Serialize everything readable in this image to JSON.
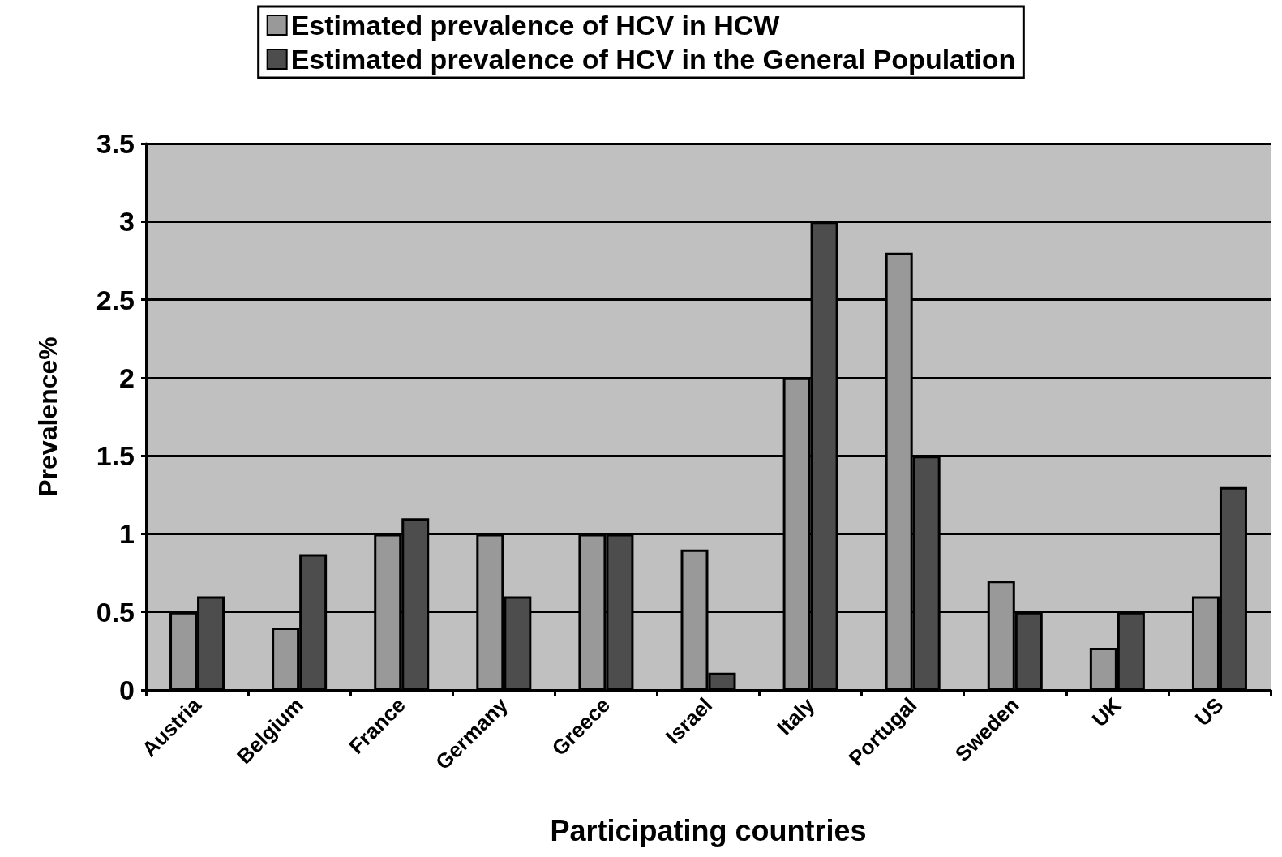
{
  "chart_data": {
    "type": "bar",
    "xlabel": "Participating countries",
    "ylabel": "Prevalence%",
    "categories": [
      "Austria",
      "Belgium",
      "France",
      "Germany",
      "Greece",
      "Israel",
      "Italy",
      "Portugal",
      "Sweden",
      "UK",
      "US"
    ],
    "series": [
      {
        "name": "Estimated prevalence of HCV in HCW",
        "color": "#999999",
        "values": [
          0.5,
          0.4,
          1,
          1,
          1,
          0.9,
          2,
          2.8,
          0.7,
          0.27,
          0.6
        ]
      },
      {
        "name": "Estimated prevalence of HCV in the General Population",
        "color": "#4d4d4d",
        "values": [
          0.6,
          0.87,
          1.1,
          0.6,
          1,
          0.11,
          3,
          1.5,
          0.5,
          0.5,
          1.3
        ]
      }
    ],
    "ylim": [
      0,
      3.5
    ],
    "yticks": [
      0,
      0.5,
      1,
      1.5,
      2,
      2.5,
      3,
      3.5
    ],
    "grid": "y",
    "legend": "top"
  }
}
